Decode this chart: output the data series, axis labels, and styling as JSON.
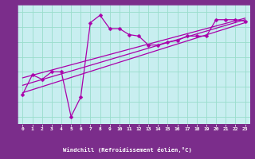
{
  "bg_color": "#c8eef0",
  "plot_bg_color": "#c8eef0",
  "footer_bg": "#7b2d8b",
  "line_color": "#aa00aa",
  "grid_color": "#99ddcc",
  "xlabel": "Windchill (Refroidissement éolien,°C)",
  "xlabel_color": "#ffffff",
  "tick_color": "#7b2d8b",
  "footer_tick_color": "#ffffff",
  "ylim": [
    6.5,
    14.5
  ],
  "xlim": [
    -0.5,
    23.5
  ],
  "yticks": [
    7,
    8,
    9,
    10,
    11,
    12,
    13,
    14
  ],
  "xticks": [
    0,
    1,
    2,
    3,
    4,
    5,
    6,
    7,
    8,
    9,
    10,
    11,
    12,
    13,
    14,
    15,
    16,
    17,
    18,
    19,
    20,
    21,
    22,
    23
  ],
  "line1_x": [
    0,
    1,
    2,
    3,
    4,
    5,
    6,
    7,
    8,
    9,
    10,
    11,
    12,
    13,
    14,
    15,
    16,
    17,
    18,
    19,
    20,
    21,
    22,
    23
  ],
  "line1_y": [
    8.5,
    9.8,
    9.5,
    10.0,
    10.0,
    7.0,
    8.3,
    13.3,
    13.8,
    12.9,
    12.9,
    12.5,
    12.4,
    11.8,
    11.8,
    12.0,
    12.1,
    12.4,
    12.4,
    12.4,
    13.5,
    13.5,
    13.5,
    13.4
  ],
  "line2_x": [
    0,
    23
  ],
  "line2_y": [
    8.6,
    13.3
  ],
  "line3_x": [
    0,
    23
  ],
  "line3_y": [
    9.1,
    13.5
  ],
  "line4_x": [
    0,
    23
  ],
  "line4_y": [
    9.6,
    13.6
  ]
}
